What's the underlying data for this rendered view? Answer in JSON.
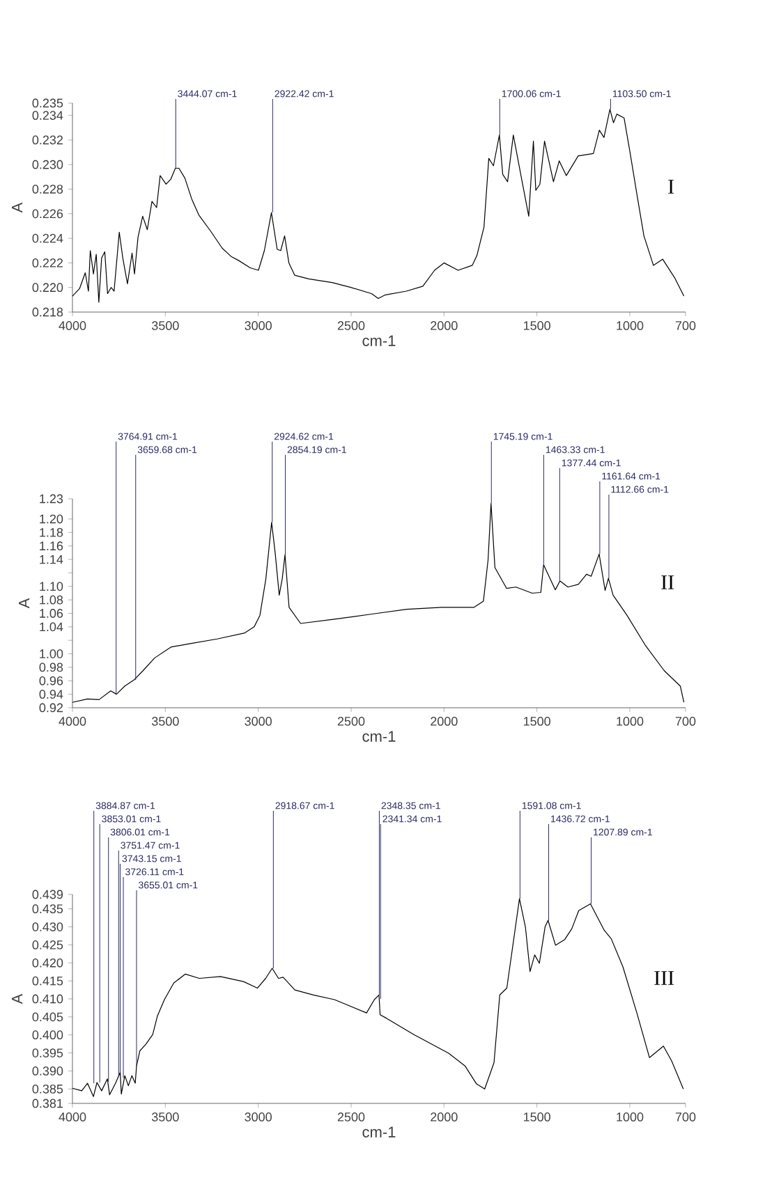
{
  "chart_data": [
    {
      "type": "line",
      "title": "I",
      "xlabel": "cm-1",
      "ylabel": "A",
      "color": "#000000",
      "xlim": [
        4000,
        700
      ],
      "xticks": [
        4000,
        3500,
        3000,
        2500,
        2000,
        1500,
        1000,
        700
      ],
      "ylim": [
        0.218,
        0.235
      ],
      "yticks": [
        0.218,
        {
          "value": 0.22,
          "label": "0.220"
        },
        0.222,
        0.224,
        0.226,
        0.228,
        {
          "value": 0.23,
          "label": "0.230"
        },
        0.232,
        0.234,
        0.235
      ],
      "x": [
        4000,
        3962,
        3931,
        3914,
        3904,
        3887,
        3872,
        3858,
        3843,
        3826,
        3811,
        3792,
        3776,
        3748,
        3729,
        3704,
        3679,
        3666,
        3647,
        3622,
        3597,
        3572,
        3547,
        3528,
        3496,
        3471,
        3446,
        3427,
        3395,
        3358,
        3320,
        3257,
        3194,
        3144,
        3106,
        3043,
        2999,
        2967,
        2929,
        2898,
        2879,
        2858,
        2835,
        2804,
        2728,
        2602,
        2501,
        2390,
        2354,
        2316,
        2203,
        2114,
        2051,
        2000,
        1924,
        1848,
        1823,
        1785,
        1759,
        1734,
        1702,
        1684,
        1658,
        1627,
        1582,
        1544,
        1519,
        1506,
        1484,
        1459,
        1411,
        1380,
        1342,
        1278,
        1196,
        1164,
        1139,
        1107,
        1088,
        1070,
        1031,
        1000,
        962,
        924,
        873,
        823,
        759,
        709
      ],
      "values": [
        0.2193,
        0.2199,
        0.2212,
        0.2197,
        0.223,
        0.2211,
        0.2227,
        0.2188,
        0.2224,
        0.2229,
        0.2195,
        0.22,
        0.2197,
        0.2245,
        0.2224,
        0.2203,
        0.2228,
        0.2211,
        0.2241,
        0.2258,
        0.2247,
        0.227,
        0.2265,
        0.2291,
        0.2284,
        0.2288,
        0.2297,
        0.2297,
        0.2289,
        0.2272,
        0.2259,
        0.2246,
        0.2232,
        0.2225,
        0.2222,
        0.2216,
        0.2214,
        0.223,
        0.2261,
        0.2231,
        0.223,
        0.2242,
        0.222,
        0.221,
        0.2207,
        0.2204,
        0.22,
        0.2195,
        0.2191,
        0.2194,
        0.2197,
        0.2201,
        0.2214,
        0.222,
        0.2214,
        0.2218,
        0.2226,
        0.2249,
        0.2305,
        0.2299,
        0.2324,
        0.2292,
        0.2286,
        0.2324,
        0.2288,
        0.2258,
        0.2319,
        0.2279,
        0.2284,
        0.2319,
        0.2286,
        0.2303,
        0.2291,
        0.2307,
        0.2309,
        0.2328,
        0.2322,
        0.2345,
        0.2334,
        0.2341,
        0.2338,
        0.2311,
        0.2276,
        0.2242,
        0.2218,
        0.2223,
        0.2208,
        0.2193
      ],
      "annotations": [
        {
          "text": "3444.07 cm-1",
          "x": 3444.07,
          "y": 0.2297
        },
        {
          "text": "2922.42 cm-1",
          "x": 2922.42,
          "y": 0.2261
        },
        {
          "text": "1700.06 cm-1",
          "x": 1700.06,
          "y": 0.2324
        },
        {
          "text": "1103.50 cm-1",
          "x": 1103.5,
          "y": 0.2345
        }
      ]
    },
    {
      "type": "line",
      "title": "II",
      "xlabel": "cm-1",
      "ylabel": "A",
      "color": "#000000",
      "xlim": [
        4000,
        700
      ],
      "xticks": [
        4000,
        3500,
        3000,
        2500,
        2000,
        1500,
        1000,
        700
      ],
      "ylim": [
        0.92,
        1.23
      ],
      "yticks": [
        0.92,
        0.94,
        0.96,
        0.98,
        {
          "value": 1.0,
          "label": "1.00"
        },
        {
          "value": 1.02,
          "label": null
        },
        1.04,
        1.06,
        1.08,
        {
          "value": 1.1,
          "label": "1.10"
        },
        {
          "value": 1.12,
          "label": null
        },
        1.14,
        1.16,
        1.18,
        {
          "value": 1.2,
          "label": "1.20"
        },
        1.23
      ],
      "x": [
        4000,
        3919,
        3857,
        3794,
        3763,
        3719,
        3670,
        3620,
        3557,
        3470,
        3370,
        3221,
        3072,
        3022,
        2991,
        2959,
        2928,
        2909,
        2887,
        2871,
        2856,
        2834,
        2772,
        2597,
        2388,
        2200,
        2012,
        1838,
        1788,
        1763,
        1747,
        1726,
        1663,
        1613,
        1526,
        1479,
        1464,
        1401,
        1376,
        1333,
        1277,
        1233,
        1208,
        1165,
        1133,
        1115,
        1090,
        1015,
        915,
        815,
        728,
        709
      ],
      "values": [
        0.928,
        0.933,
        0.932,
        0.945,
        0.94,
        0.952,
        0.961,
        0.975,
        0.994,
        1.01,
        1.015,
        1.022,
        1.031,
        1.04,
        1.057,
        1.111,
        1.195,
        1.15,
        1.087,
        1.111,
        1.147,
        1.069,
        1.045,
        1.051,
        1.059,
        1.066,
        1.069,
        1.069,
        1.078,
        1.139,
        1.223,
        1.128,
        1.097,
        1.099,
        1.09,
        1.091,
        1.132,
        1.095,
        1.108,
        1.099,
        1.103,
        1.118,
        1.115,
        1.148,
        1.094,
        1.112,
        1.087,
        1.057,
        1.012,
        0.975,
        0.952,
        0.928
      ],
      "annotations": [
        {
          "text": "3764.91 cm-1",
          "x": 3764.91,
          "y": 0.94
        },
        {
          "text": "3659.68 cm-1",
          "x": 3659.68,
          "y": 0.961
        },
        {
          "text": "2924.62 cm-1",
          "x": 2924.62,
          "y": 1.195
        },
        {
          "text": "2854.19 cm-1",
          "x": 2854.19,
          "y": 1.147
        },
        {
          "text": "1745.19 cm-1",
          "x": 1745.19,
          "y": 1.223
        },
        {
          "text": "1463.33 cm-1",
          "x": 1463.33,
          "y": 1.132
        },
        {
          "text": "1377.44 cm-1",
          "x": 1377.44,
          "y": 1.108
        },
        {
          "text": "1161.64 cm-1",
          "x": 1161.64,
          "y": 1.148
        },
        {
          "text": "1112.66 cm-1",
          "x": 1112.66,
          "y": 1.112
        }
      ]
    },
    {
      "type": "line",
      "title": "III",
      "xlabel": "cm-1",
      "ylabel": "A",
      "color": "#000000",
      "xlim": [
        4000,
        700
      ],
      "xticks": [
        4000,
        3500,
        3000,
        2500,
        2000,
        1500,
        1000,
        700
      ],
      "ylim": [
        0.381,
        0.439
      ],
      "yticks": [
        0.381,
        0.385,
        {
          "value": 0.39,
          "label": "0.390"
        },
        0.395,
        {
          "value": 0.4,
          "label": "0.400"
        },
        0.405,
        {
          "value": 0.41,
          "label": "0.410"
        },
        0.415,
        {
          "value": 0.42,
          "label": "0.420"
        },
        0.425,
        {
          "value": 0.43,
          "label": "0.430"
        },
        0.435,
        0.439
      ],
      "x": [
        4000,
        3950,
        3919,
        3887,
        3868,
        3843,
        3812,
        3800,
        3768,
        3743,
        3737,
        3718,
        3699,
        3680,
        3662,
        3655,
        3637,
        3605,
        3568,
        3543,
        3505,
        3455,
        3392,
        3317,
        3204,
        3079,
        3004,
        2960,
        2925,
        2891,
        2866,
        2803,
        2703,
        2590,
        2417,
        2375,
        2350,
        2344,
        2312,
        2162,
        1975,
        1887,
        1825,
        1781,
        1731,
        1700,
        1662,
        1594,
        1562,
        1537,
        1512,
        1487,
        1456,
        1440,
        1400,
        1350,
        1312,
        1275,
        1212,
        1137,
        1100,
        1037,
        962,
        894,
        819,
        775,
        712
      ],
      "values": [
        0.3852,
        0.3845,
        0.3866,
        0.3829,
        0.3868,
        0.3845,
        0.3878,
        0.3834,
        0.3866,
        0.3896,
        0.3836,
        0.3887,
        0.3859,
        0.3887,
        0.3866,
        0.3914,
        0.3956,
        0.3974,
        0.4001,
        0.4052,
        0.4098,
        0.4144,
        0.4169,
        0.4157,
        0.4162,
        0.4148,
        0.413,
        0.4157,
        0.4185,
        0.4157,
        0.416,
        0.4125,
        0.4111,
        0.4098,
        0.4061,
        0.4098,
        0.4111,
        0.4056,
        0.4047,
        0.4001,
        0.3949,
        0.3914,
        0.3864,
        0.385,
        0.3923,
        0.4111,
        0.413,
        0.4378,
        0.43,
        0.4176,
        0.4222,
        0.4199,
        0.43,
        0.4318,
        0.4249,
        0.4265,
        0.4295,
        0.4345,
        0.4364,
        0.429,
        0.4267,
        0.4189,
        0.4061,
        0.3937,
        0.3969,
        0.3928,
        0.385
      ],
      "annotations": [
        {
          "text": "3884.87 cm-1",
          "x": 3884.87,
          "y": 0.3866
        },
        {
          "text": "3853.01 cm-1",
          "x": 3853.01,
          "y": 0.3868
        },
        {
          "text": "3806.01 cm-1",
          "x": 3806.01,
          "y": 0.387
        },
        {
          "text": "3751.47 cm-1",
          "x": 3751.47,
          "y": 0.3885
        },
        {
          "text": "3743.15 cm-1",
          "x": 3743.15,
          "y": 0.3896
        },
        {
          "text": "3726.11 cm-1",
          "x": 3726.11,
          "y": 0.388
        },
        {
          "text": "3655.01 cm-1",
          "x": 3655.01,
          "y": 0.3914
        },
        {
          "text": "2918.67 cm-1",
          "x": 2918.67,
          "y": 0.4185
        },
        {
          "text": "2348.35 cm-1",
          "x": 2348.35,
          "y": 0.4111
        },
        {
          "text": "2341.34 cm-1",
          "x": 2341.34,
          "y": 0.41
        },
        {
          "text": "1591.08 cm-1",
          "x": 1591.08,
          "y": 0.4378
        },
        {
          "text": "1436.72 cm-1",
          "x": 1436.72,
          "y": 0.4318
        },
        {
          "text": "1207.89 cm-1",
          "x": 1207.89,
          "y": 0.4364
        }
      ]
    }
  ]
}
